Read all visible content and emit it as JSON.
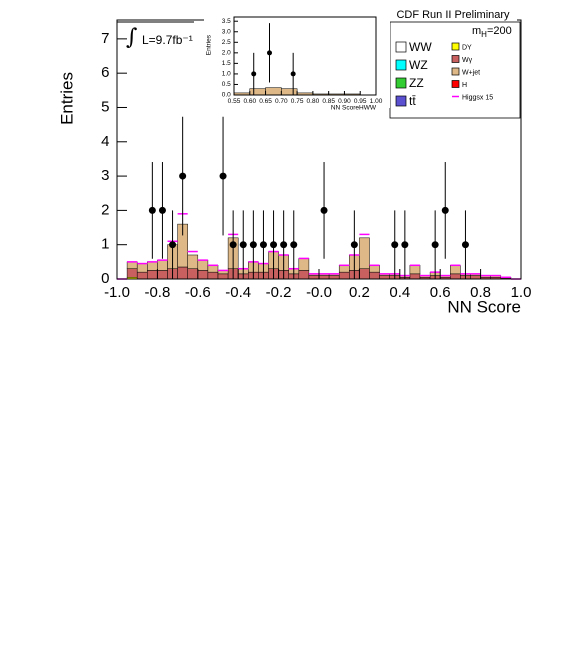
{
  "chart_data": [
    {
      "type": "stacked-histogram",
      "title": "CDF Run II Preliminary",
      "x_label": "NN Score",
      "y_label": "Entries",
      "luminosity": "L=9.7fb⁻¹",
      "mass": {
        "text": "m",
        "sub": "H",
        "rest": "=200"
      },
      "bins": [
        -1.0,
        -0.95,
        -0.9,
        -0.85,
        -0.8,
        -0.75,
        -0.7,
        -0.65,
        -0.6,
        -0.55,
        -0.5,
        -0.45,
        -0.4,
        -0.35,
        -0.3,
        -0.25,
        -0.2,
        -0.15,
        -0.1,
        -0.05,
        0.0,
        0.05,
        0.1,
        0.15,
        0.2,
        0.25,
        0.3,
        0.35,
        0.4,
        0.45,
        0.5,
        0.55,
        0.6,
        0.65,
        0.7,
        0.75,
        0.8,
        0.85,
        0.9,
        0.95,
        1.0
      ],
      "series": [
        {
          "name": "DY",
          "color": "#ffff00",
          "values": [
            0,
            0.05,
            0,
            0,
            0,
            0,
            0,
            0,
            0,
            0,
            0,
            0,
            0,
            0,
            0,
            0,
            0,
            0,
            0,
            0,
            0,
            0,
            0,
            0,
            0,
            0,
            0,
            0,
            0,
            0,
            0,
            0,
            0,
            0,
            0,
            0,
            0,
            0,
            0,
            0
          ]
        },
        {
          "name": "Wγ",
          "color": "#c86060",
          "values": [
            0,
            0.25,
            0.2,
            0.25,
            0.25,
            0.3,
            0.35,
            0.3,
            0.25,
            0.2,
            0.15,
            0.3,
            0.15,
            0.2,
            0.2,
            0.3,
            0.25,
            0.15,
            0.25,
            0.1,
            0.1,
            0.1,
            0.2,
            0.25,
            0.3,
            0.2,
            0.1,
            0.1,
            0.05,
            0.15,
            0.05,
            0.1,
            0.05,
            0.15,
            0.1,
            0.1,
            0.05,
            0.05,
            0.03,
            0
          ]
        },
        {
          "name": "W+jet",
          "color": "#deb887",
          "values": [
            0,
            0.2,
            0.25,
            0.25,
            0.3,
            0.7,
            1.25,
            0.4,
            0.3,
            0.2,
            0.1,
            0.9,
            0.15,
            0.3,
            0.25,
            0.5,
            0.45,
            0.15,
            0.35,
            0.05,
            0.05,
            0.05,
            0.2,
            0.45,
            0.9,
            0.2,
            0.05,
            0.05,
            0.05,
            0.25,
            0.05,
            0.1,
            0.05,
            0.25,
            0.05,
            0.05,
            0.05,
            0.05,
            0.02,
            0
          ]
        },
        {
          "name": "WW",
          "color": "#ffffff",
          "values": [
            0,
            0,
            0,
            0,
            0,
            0,
            0,
            0,
            0,
            0,
            0,
            0,
            0,
            0,
            0,
            0,
            0,
            0,
            0,
            0,
            0,
            0,
            0,
            0,
            0,
            0,
            0,
            0,
            0,
            0,
            0,
            0,
            0,
            0,
            0,
            0,
            0,
            0,
            0,
            0
          ]
        },
        {
          "name": "WZ",
          "color": "#00ffff",
          "values": [
            0,
            0,
            0,
            0,
            0,
            0,
            0,
            0,
            0,
            0,
            0,
            0,
            0,
            0,
            0,
            0,
            0,
            0,
            0,
            0,
            0,
            0,
            0,
            0,
            0,
            0,
            0,
            0,
            0,
            0,
            0,
            0,
            0,
            0,
            0,
            0,
            0,
            0,
            0,
            0
          ]
        },
        {
          "name": "ZZ",
          "color": "#33cc33",
          "values": [
            0,
            0,
            0,
            0,
            0,
            0,
            0,
            0,
            0,
            0,
            0,
            0,
            0,
            0,
            0,
            0,
            0,
            0,
            0,
            0,
            0,
            0,
            0,
            0,
            0,
            0,
            0,
            0,
            0,
            0,
            0,
            0,
            0,
            0,
            0,
            0,
            0,
            0,
            0,
            0
          ]
        },
        {
          "name": "tt̄",
          "color": "#5a50d0",
          "values": [
            0,
            0,
            0,
            0,
            0,
            0,
            0,
            0,
            0,
            0,
            0,
            0,
            0,
            0,
            0,
            0,
            0,
            0,
            0,
            0,
            0,
            0,
            0,
            0,
            0,
            0,
            0,
            0,
            0,
            0,
            0,
            0,
            0,
            0,
            0,
            0,
            0,
            0,
            0,
            0
          ]
        },
        {
          "name": "H",
          "color": "#ff0000",
          "values": [
            0,
            0,
            0,
            0,
            0,
            0,
            0,
            0,
            0,
            0,
            0,
            0,
            0,
            0,
            0,
            0,
            0,
            0,
            0,
            0,
            0,
            0,
            0,
            0,
            0,
            0,
            0,
            0,
            0,
            0,
            0,
            0,
            0,
            0,
            0,
            0,
            0,
            0,
            0,
            0
          ]
        },
        {
          "name": "Higgsx 15",
          "color": "#ff00ff",
          "line": true,
          "values": [
            0,
            0,
            0,
            0,
            0,
            0.1,
            0.3,
            0.1,
            0,
            0,
            0,
            0.1,
            0,
            0,
            0,
            0,
            0,
            0,
            0,
            0,
            0,
            0,
            0,
            0,
            0.1,
            0,
            0,
            0,
            0,
            0,
            0,
            0,
            0,
            0,
            0,
            0,
            0,
            0,
            0,
            0
          ]
        }
      ],
      "points": {
        "x": [
          -0.825,
          -0.775,
          -0.725,
          -0.675,
          -0.475,
          -0.425,
          -0.375,
          -0.325,
          -0.275,
          -0.225,
          -0.175,
          -0.125,
          0.025,
          0.175,
          0.375,
          0.425,
          0.575,
          0.625,
          0.725
        ],
        "values": [
          2,
          2,
          1,
          3,
          3,
          1,
          1,
          1,
          1,
          1,
          1,
          1,
          2,
          1,
          1,
          1,
          1,
          2,
          1
        ],
        "errors": [
          1.41,
          1.41,
          1,
          1.73,
          1.73,
          1,
          1,
          1,
          1,
          1,
          1,
          1,
          1.41,
          1,
          1,
          1,
          1,
          1.41,
          1
        ]
      },
      "xlim": [
        -1.0,
        1.0
      ],
      "ylim": [
        0,
        7.55
      ],
      "xticks": [
        {
          "value": -1.0,
          "label": "-1.0"
        },
        -0.8,
        -0.6,
        -0.4,
        -0.2,
        {
          "value": 0,
          "label": "-0.0"
        },
        0.2,
        0.4,
        0.6,
        0.8,
        {
          "value": 1.0,
          "label": "1.0"
        }
      ],
      "yticks": [
        0,
        1,
        2,
        3,
        4,
        5,
        6,
        7
      ]
    },
    {
      "type": "histogram",
      "x_label": "NN ScoreHWW",
      "y_label": "Entries",
      "bins": [
        0.55,
        0.6,
        0.65,
        0.7,
        0.75,
        0.8,
        0.85,
        0.9,
        0.95,
        1.0
      ],
      "values": [
        0.1,
        0.3,
        0.35,
        0.3,
        0.1,
        0.05,
        0.05,
        0.05,
        0
      ],
      "color": "#deb887",
      "points": {
        "x": [
          0.6125,
          0.6625,
          0.7375
        ],
        "values": [
          1,
          2,
          1
        ],
        "errors": [
          1,
          1.41,
          1
        ]
      },
      "xlim": [
        0.55,
        1.0
      ],
      "ylim": [
        0,
        3.7
      ],
      "xticks": [
        0.55,
        {
          "value": 0.6,
          "label": "0.60"
        },
        0.65,
        {
          "value": 0.7,
          "label": "0.70"
        },
        0.75,
        {
          "value": 0.8,
          "label": "0.80"
        },
        0.85,
        {
          "value": 0.9,
          "label": "0.90"
        },
        0.95,
        {
          "value": 1.0,
          "label": "1.00"
        }
      ],
      "yticks": [
        {
          "value": 0,
          "label": "0.0"
        },
        0.5,
        {
          "value": 1,
          "label": "1.0"
        },
        1.5,
        {
          "value": 2,
          "label": "2.0"
        },
        2.5,
        {
          "value": 3,
          "label": "3.0"
        },
        3.5
      ]
    }
  ]
}
